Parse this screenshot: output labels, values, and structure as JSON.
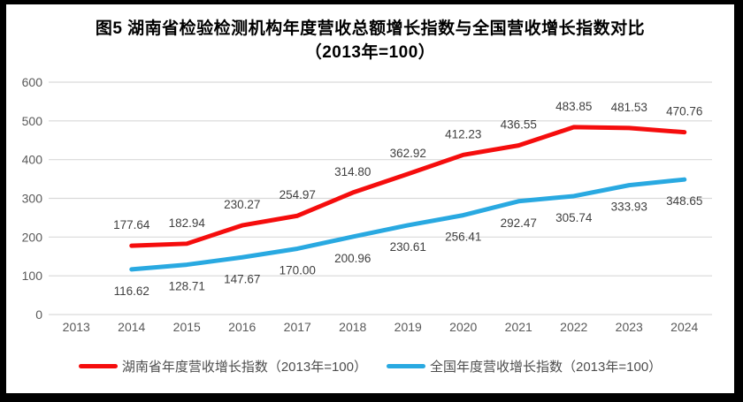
{
  "title": {
    "line1": "图5 湖南省检验检测机构年度营收总额增长指数与全国营收增长指数对比",
    "line2": "（2013年=100）"
  },
  "chart_data": {
    "type": "line",
    "categories": [
      "2013",
      "2014",
      "2015",
      "2016",
      "2017",
      "2018",
      "2019",
      "2020",
      "2021",
      "2022",
      "2023",
      "2024"
    ],
    "series": [
      {
        "id": "hunan",
        "name": "湖南省年度营收增长指数（2013年=100）",
        "color": "#F50D0D",
        "values": [
          null,
          177.64,
          182.94,
          230.27,
          254.97,
          314.8,
          362.92,
          412.23,
          436.55,
          483.85,
          481.53,
          470.76
        ],
        "label_position": "above"
      },
      {
        "id": "national",
        "name": "全国年度营收增长指数（2013年=100）",
        "color": "#29A9E1",
        "values": [
          null,
          116.62,
          128.71,
          147.67,
          170.0,
          200.96,
          230.61,
          256.41,
          292.47,
          305.74,
          333.93,
          348.65
        ],
        "label_position": "below"
      }
    ],
    "title": "图5 湖南省检验检测机构年度营收总额增长指数与全国营收增长指数对比（2013年=100）",
    "xlabel": "",
    "ylabel": "",
    "ylim": [
      0,
      600
    ],
    "yticks": [
      0,
      100,
      200,
      300,
      400,
      500,
      600
    ],
    "grid": true,
    "legend_position": "bottom",
    "label_decimals": 2
  },
  "colors": {
    "grid": "#D9D9D9",
    "axis_text": "#595959",
    "data_label": "#404040",
    "legend_text": "#4d4d4d",
    "title_text": "#000000",
    "frame_border": "#000000",
    "background": "#FFFFFF"
  }
}
